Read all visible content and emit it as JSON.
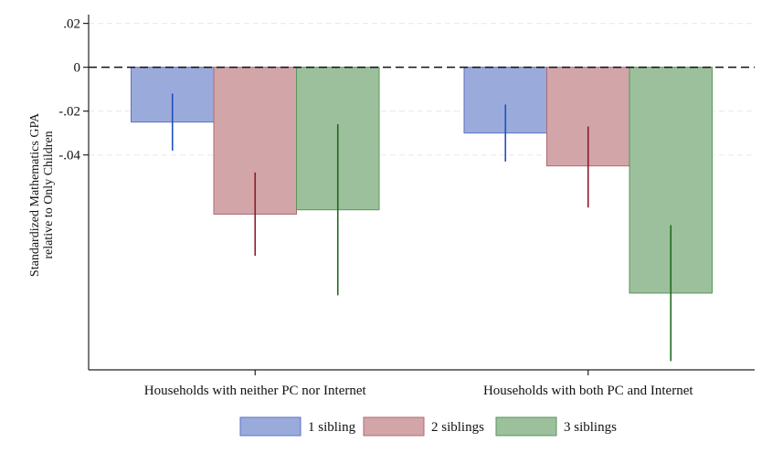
{
  "chart_data": {
    "type": "bar",
    "title": "",
    "xlabel": "",
    "ylabel": [
      "Standardized Mathematics GPA",
      "relative to Only Children"
    ],
    "categories": [
      "Households with neither PC nor Internet",
      "Households with both PC and Internet"
    ],
    "ylim": [
      -0.138,
      0.024
    ],
    "yticks": [
      0.02,
      0,
      -0.02,
      -0.04
    ],
    "ytick_labels": [
      ".02",
      "0",
      "-.02",
      "-.04"
    ],
    "grid": true,
    "reference_line": 0,
    "legend_position": "bottom",
    "series": [
      {
        "name": "1 sibling",
        "values": [
          -0.025,
          -0.03
        ],
        "ci": [
          [
            -0.038,
            -0.012
          ],
          [
            -0.043,
            -0.017
          ]
        ],
        "color": "#9aabdb",
        "edge": "#5a73c0",
        "whisker": "#1f4fbf"
      },
      {
        "name": "2 siblings",
        "values": [
          -0.067,
          -0.045
        ],
        "ci": [
          [
            -0.086,
            -0.048
          ],
          [
            -0.064,
            -0.027
          ]
        ],
        "color": "#d2a5a9",
        "edge": "#b06a72",
        "whisker": "#8c1c2a"
      },
      {
        "name": "3 siblings",
        "values": [
          -0.065,
          -0.103
        ],
        "ci": [
          [
            -0.104,
            -0.026
          ],
          [
            -0.134,
            -0.072
          ]
        ],
        "color": "#9cc09c",
        "edge": "#5a955a",
        "whisker": "#1e6b1e"
      }
    ]
  }
}
